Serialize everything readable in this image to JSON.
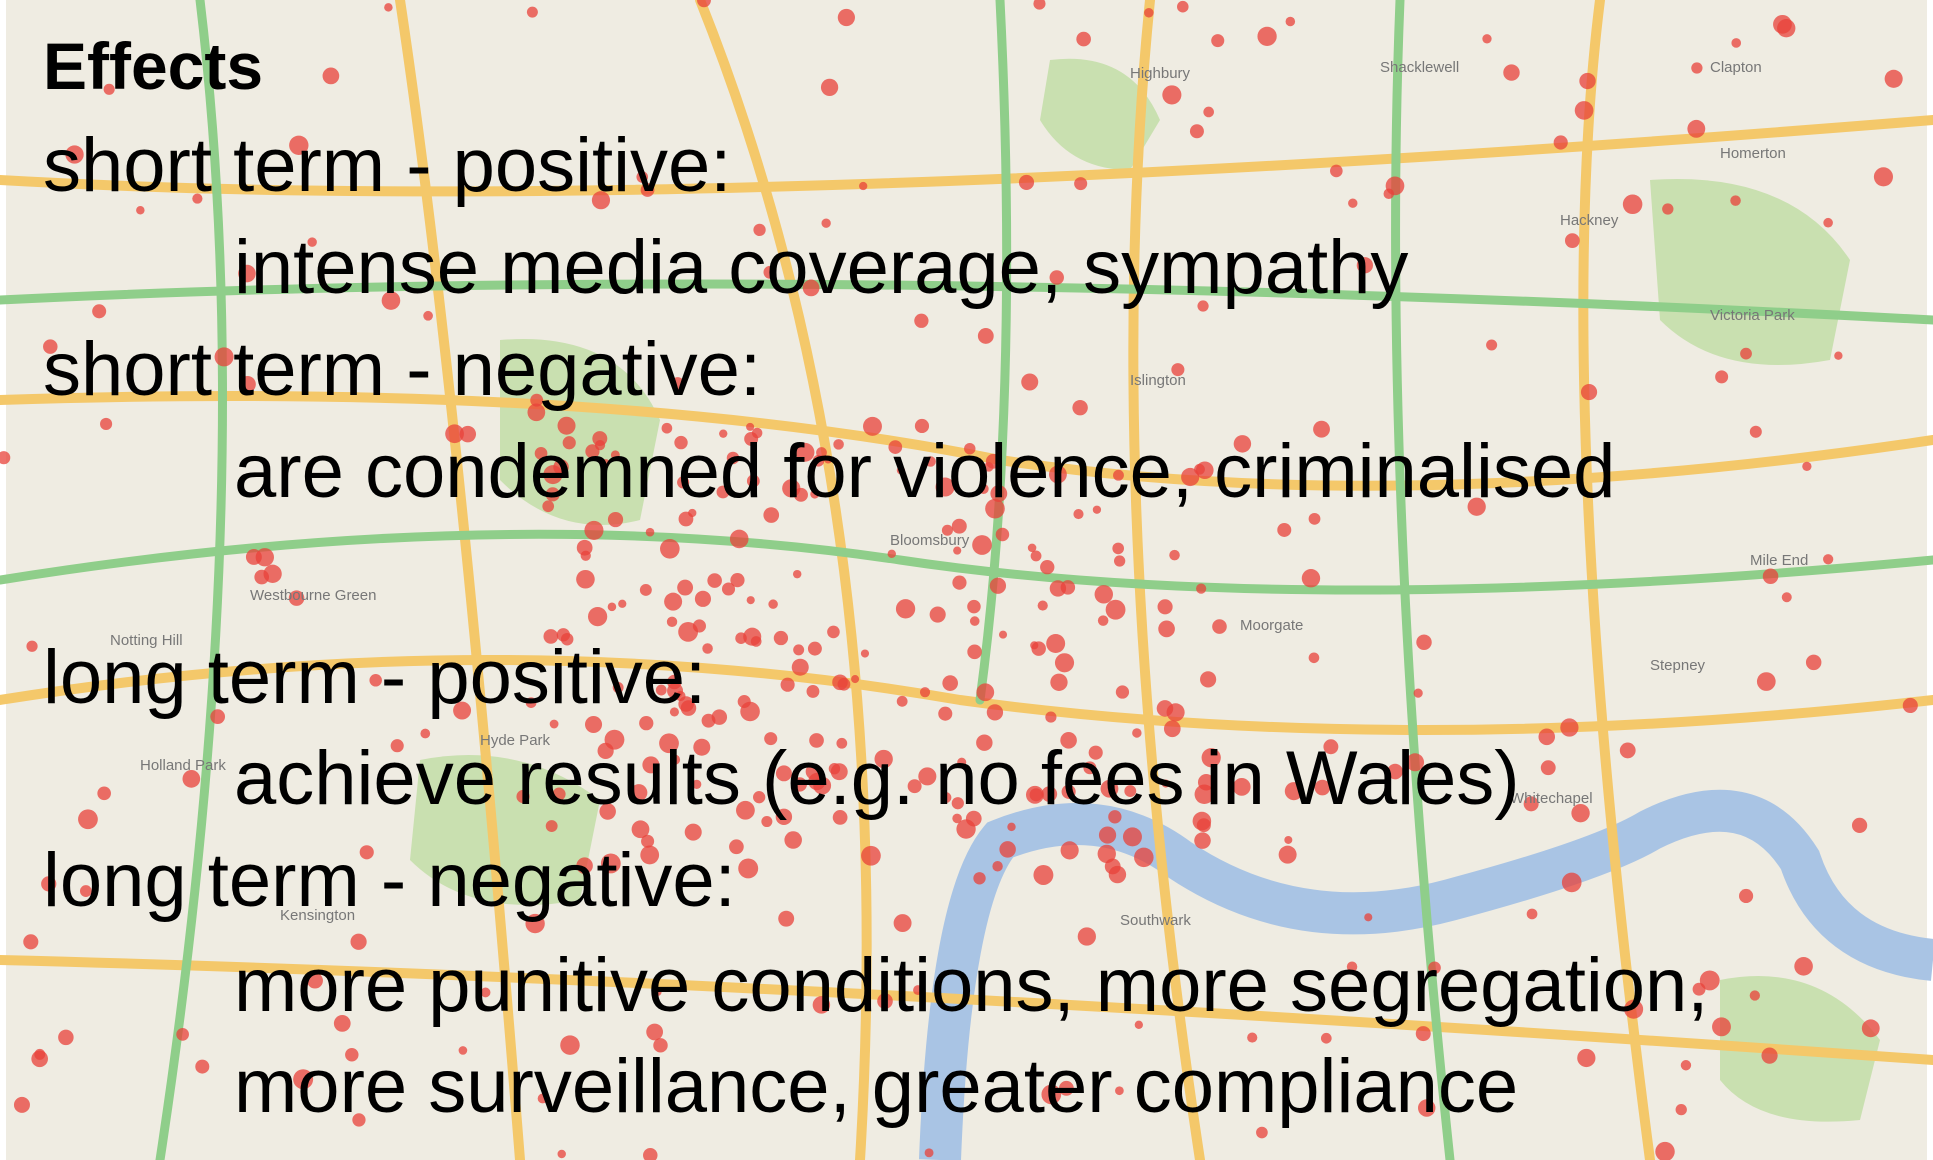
{
  "slide": {
    "title": "Effects",
    "items": [
      {
        "heading": "short term - positive:",
        "details": [
          "intense media coverage, sympathy"
        ]
      },
      {
        "heading": "short term - negative:",
        "details": [
          "are condemned for violence, criminalised"
        ]
      },
      {
        "heading": "long term - positive:",
        "details": [
          "achieve results (e.g. no fees in Wales)"
        ]
      },
      {
        "heading": "long term - negative:",
        "details": [
          "more punitive conditions, more segregation,",
          "more surveillance, greater compliance"
        ]
      }
    ]
  },
  "map_labels": [
    "Shacklewell",
    "Clapton",
    "Hackney",
    "Homerton",
    "Islington",
    "Victoria Park",
    "Bloomsbury",
    "Moorgate",
    "Stepney",
    "Holland Park",
    "Southwark",
    "Westbourne Green",
    "Notting Hill",
    "Mile End",
    "Kensington",
    "Whitechapel",
    "Hyde Park",
    "Highbury"
  ]
}
